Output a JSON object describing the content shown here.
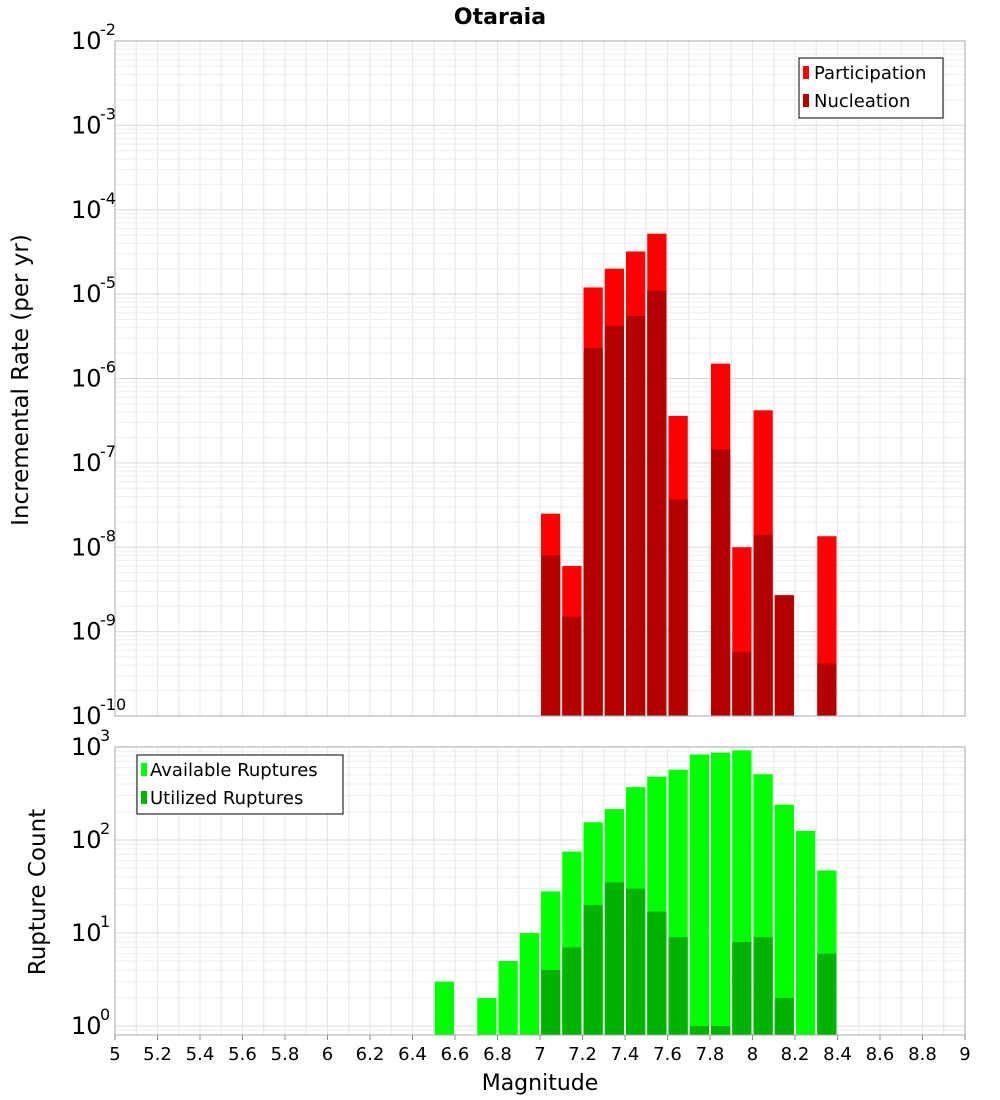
{
  "chart_data": [
    {
      "type": "bar",
      "title": "Otaraia",
      "ylabel": "Incremental Rate (per yr)",
      "yscale": "log",
      "ylim": [
        1e-10,
        0.01
      ],
      "xlim": [
        5,
        9
      ],
      "grid": true,
      "legend_position": "top-right",
      "y_tick_exponents": [
        "-2",
        "-3",
        "-4",
        "-5",
        "-6",
        "-7",
        "-8",
        "-9",
        "-10"
      ],
      "y_tick_base": "10",
      "series": [
        {
          "name": "Participation",
          "color": "#ff0000",
          "x": [
            7.05,
            7.15,
            7.25,
            7.35,
            7.45,
            7.55,
            7.65,
            7.85,
            7.95,
            8.05,
            8.15,
            8.35
          ],
          "values": [
            2.5e-08,
            6e-09,
            1.2e-05,
            2e-05,
            3.2e-05,
            5.2e-05,
            3.6e-07,
            1.5e-06,
            1e-08,
            4.2e-07,
            2.7e-09,
            1.35e-08
          ]
        },
        {
          "name": "Nucleation",
          "color": "#b30000",
          "x": [
            7.05,
            7.15,
            7.25,
            7.35,
            7.45,
            7.55,
            7.65,
            7.85,
            7.95,
            8.05,
            8.15,
            8.35
          ],
          "values": [
            8e-09,
            1.5e-09,
            2.3e-06,
            4.2e-06,
            5.5e-06,
            1.1e-05,
            3.7e-08,
            1.45e-07,
            5.7e-10,
            1.4e-08,
            2.7e-09,
            4.2e-10
          ]
        }
      ]
    },
    {
      "type": "bar",
      "ylabel": "Rupture Count",
      "xlabel": "Magnitude",
      "yscale": "log",
      "ylim": [
        0.8,
        1000
      ],
      "xlim": [
        5,
        9
      ],
      "grid": true,
      "legend_position": "top-left",
      "x_ticks": [
        "5",
        "5.2",
        "5.4",
        "5.6",
        "5.8",
        "6",
        "6.2",
        "6.4",
        "6.6",
        "6.8",
        "7",
        "7.2",
        "7.4",
        "7.6",
        "7.8",
        "8",
        "8.2",
        "8.4",
        "8.6",
        "8.8",
        "9"
      ],
      "y_tick_exponents": [
        "3",
        "2",
        "1",
        "0"
      ],
      "y_tick_base": "10",
      "series": [
        {
          "name": "Available Ruptures",
          "color": "#00ff00",
          "x": [
            6.55,
            6.75,
            6.85,
            6.95,
            7.05,
            7.15,
            7.25,
            7.35,
            7.45,
            7.55,
            7.65,
            7.75,
            7.85,
            7.95,
            8.05,
            8.15,
            8.25,
            8.35
          ],
          "values": [
            3,
            2,
            5,
            10,
            28,
            75,
            155,
            215,
            370,
            480,
            570,
            830,
            870,
            920,
            510,
            240,
            125,
            47
          ]
        },
        {
          "name": "Utilized Ruptures",
          "color": "#00b300",
          "x": [
            7.05,
            7.15,
            7.25,
            7.35,
            7.45,
            7.55,
            7.65,
            7.75,
            7.85,
            7.95,
            8.05,
            8.15,
            8.35
          ],
          "values": [
            4,
            7,
            20,
            35,
            30,
            17,
            9,
            1,
            1,
            8,
            9,
            2,
            6
          ]
        }
      ]
    }
  ]
}
